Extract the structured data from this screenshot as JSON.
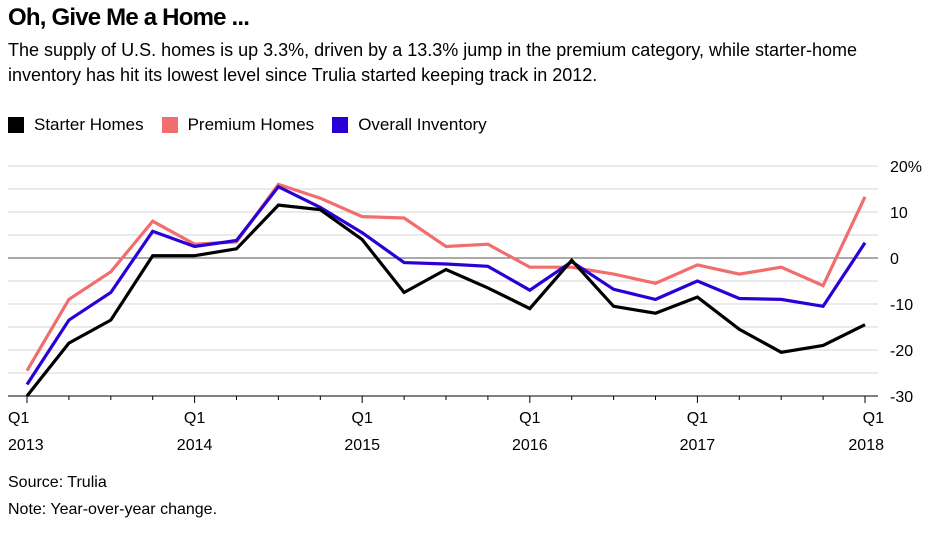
{
  "title": "Oh, Give Me a Home ...",
  "subtitle": "The supply of U.S. homes is up 3.3%, driven by a 13.3% jump in the premium category, while starter-home inventory has hit its lowest level since Trulia started keeping track in 2012.",
  "source": "Source: Trulia",
  "note": "Note: Year-over-year change.",
  "chart_data": {
    "type": "line",
    "title": "Oh, Give Me a Home ...",
    "xlabel": "",
    "ylabel": "",
    "ylim": [
      -30,
      20
    ],
    "yticks": [
      20,
      10,
      0,
      -10,
      -20,
      -30
    ],
    "ytick_labels": [
      "20%",
      "10",
      "0",
      "-10",
      "-20",
      "-30"
    ],
    "grid": true,
    "legend_position": "top-left",
    "x": [
      "Q1 2013",
      "Q2 2013",
      "Q3 2013",
      "Q4 2013",
      "Q1 2014",
      "Q2 2014",
      "Q3 2014",
      "Q4 2014",
      "Q1 2015",
      "Q2 2015",
      "Q3 2015",
      "Q4 2015",
      "Q1 2016",
      "Q2 2016",
      "Q3 2016",
      "Q4 2016",
      "Q1 2017",
      "Q2 2017",
      "Q3 2017",
      "Q4 2017",
      "Q1 2018"
    ],
    "x_tick_labels": [
      {
        "index": 0,
        "q": "Q1",
        "year": "2013"
      },
      {
        "index": 4,
        "q": "Q1",
        "year": "2014"
      },
      {
        "index": 8,
        "q": "Q1",
        "year": "2015"
      },
      {
        "index": 12,
        "q": "Q1",
        "year": "2016"
      },
      {
        "index": 16,
        "q": "Q1",
        "year": "2017"
      },
      {
        "index": 20,
        "q": "Q1",
        "year": "2018"
      }
    ],
    "series": [
      {
        "name": "Starter Homes",
        "color": "#000000",
        "values": [
          -30,
          -18.5,
          -13.5,
          0.5,
          0.5,
          2,
          11.5,
          10.5,
          4,
          -7.5,
          -2.5,
          -6.5,
          -11,
          -0.5,
          -10.5,
          -12,
          -8.5,
          -15.5,
          -20.5,
          -19,
          -14.5
        ]
      },
      {
        "name": "Premium Homes",
        "color": "#f26d6d",
        "values": [
          -24.5,
          -9,
          -3,
          8,
          3,
          3.5,
          16,
          13,
          9,
          8.7,
          2.5,
          3,
          -2,
          -2,
          -3.5,
          -5.5,
          -1.5,
          -3.5,
          -2,
          -6,
          13.3
        ]
      },
      {
        "name": "Overall Inventory",
        "color": "#2b00d6",
        "values": [
          -27.5,
          -13.5,
          -7.5,
          5.8,
          2.5,
          3.8,
          15.5,
          11,
          5.5,
          -1,
          -1.3,
          -1.8,
          -7,
          -0.8,
          -6.8,
          -9,
          -5,
          -8.8,
          -9,
          -10.5,
          3.3
        ]
      }
    ]
  }
}
